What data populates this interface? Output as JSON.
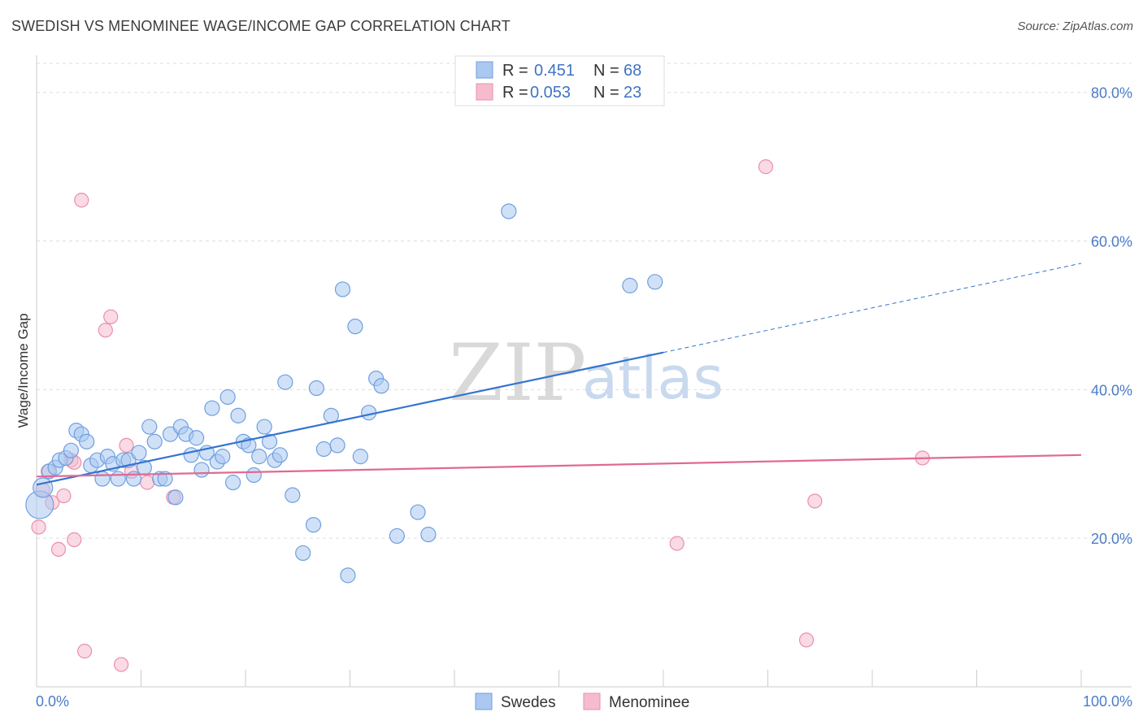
{
  "header": {
    "title": "SWEDISH VS MENOMINEE WAGE/INCOME GAP CORRELATION CHART",
    "source": "Source: ZipAtlas.com"
  },
  "watermark": {
    "zip": "ZIP",
    "atlas": "atlas"
  },
  "colors": {
    "blue_fill": "#aac8f0",
    "blue_stroke": "#6f9fe0",
    "blue_line": "#3474d0",
    "pink_fill": "#f6bccd",
    "pink_stroke": "#ea8fab",
    "pink_line": "#e06a93",
    "grid": "#dddddd",
    "axis_label": "#4a7cc9"
  },
  "legend": {
    "rows": [
      {
        "r_label": "R =",
        "r_value": "0.451",
        "n_label": "N =",
        "n_value": "68"
      },
      {
        "r_label": "R =",
        "r_value": "0.053",
        "n_label": "N =",
        "n_value": "23"
      }
    ]
  },
  "chart_data": {
    "type": "scatter",
    "title": "SWEDISH VS MENOMINEE WAGE/INCOME GAP CORRELATION CHART",
    "xlabel": "",
    "ylabel": "Wage/Income Gap",
    "xlim": [
      0,
      100
    ],
    "ylim": [
      0,
      85
    ],
    "x_tick_labels": [
      "0.0%",
      "100.0%"
    ],
    "y_ticks": [
      20,
      40,
      60,
      80
    ],
    "y_tick_labels": [
      "20.0%",
      "40.0%",
      "60.0%",
      "80.0%"
    ],
    "grid": true,
    "legend_position": "top-center",
    "series": [
      {
        "name": "Swedes",
        "r": 0.451,
        "n": 68,
        "trend": {
          "x0": 0,
          "y0": 27.2,
          "x1": 60,
          "y1": 45.0,
          "dash_to_x": 100,
          "dash_to_y": 57.0
        },
        "points": [
          [
            0.3,
            24.5
          ],
          [
            0.6,
            26.8
          ],
          [
            1.2,
            29.0
          ],
          [
            1.8,
            29.5
          ],
          [
            2.2,
            30.5
          ],
          [
            2.8,
            30.8
          ],
          [
            3.3,
            31.8
          ],
          [
            3.8,
            34.5
          ],
          [
            4.3,
            34.0
          ],
          [
            4.8,
            33.0
          ],
          [
            5.2,
            29.8
          ],
          [
            5.8,
            30.5
          ],
          [
            6.3,
            28.0
          ],
          [
            6.8,
            31.0
          ],
          [
            7.3,
            30.0
          ],
          [
            7.8,
            28.0
          ],
          [
            8.3,
            30.5
          ],
          [
            8.8,
            30.5
          ],
          [
            9.3,
            28.0
          ],
          [
            9.8,
            31.5
          ],
          [
            10.3,
            29.5
          ],
          [
            10.8,
            35.0
          ],
          [
            11.3,
            33.0
          ],
          [
            11.8,
            28.0
          ],
          [
            12.3,
            28.0
          ],
          [
            12.8,
            34.0
          ],
          [
            13.3,
            25.5
          ],
          [
            13.8,
            35.0
          ],
          [
            14.3,
            34.0
          ],
          [
            14.8,
            31.2
          ],
          [
            15.3,
            33.5
          ],
          [
            15.8,
            29.2
          ],
          [
            16.3,
            31.5
          ],
          [
            16.8,
            37.5
          ],
          [
            17.3,
            30.3
          ],
          [
            17.8,
            31.0
          ],
          [
            18.3,
            39.0
          ],
          [
            18.8,
            27.5
          ],
          [
            19.3,
            36.5
          ],
          [
            19.8,
            33.0
          ],
          [
            20.3,
            32.5
          ],
          [
            20.8,
            28.5
          ],
          [
            21.3,
            31.0
          ],
          [
            21.8,
            35.0
          ],
          [
            22.3,
            33.0
          ],
          [
            22.8,
            30.5
          ],
          [
            23.3,
            31.2
          ],
          [
            23.8,
            41.0
          ],
          [
            24.5,
            25.8
          ],
          [
            25.5,
            18.0
          ],
          [
            26.5,
            21.8
          ],
          [
            26.8,
            40.2
          ],
          [
            27.5,
            32.0
          ],
          [
            28.2,
            36.5
          ],
          [
            28.8,
            32.5
          ],
          [
            29.3,
            53.5
          ],
          [
            29.8,
            15.0
          ],
          [
            30.5,
            48.5
          ],
          [
            31.0,
            31.0
          ],
          [
            31.8,
            36.9
          ],
          [
            32.5,
            41.5
          ],
          [
            33.0,
            40.5
          ],
          [
            34.5,
            20.3
          ],
          [
            36.5,
            23.5
          ],
          [
            37.5,
            20.5
          ],
          [
            45.2,
            64.0
          ],
          [
            56.8,
            54.0
          ],
          [
            59.2,
            54.5
          ]
        ]
      },
      {
        "name": "Menominee",
        "r": 0.053,
        "n": 23,
        "trend": {
          "x0": 0,
          "y0": 28.3,
          "x1": 100,
          "y1": 31.2
        },
        "points": [
          [
            0.2,
            21.5
          ],
          [
            0.6,
            26.5
          ],
          [
            1.1,
            29.0
          ],
          [
            1.5,
            24.8
          ],
          [
            2.1,
            18.5
          ],
          [
            2.6,
            25.7
          ],
          [
            3.3,
            30.5
          ],
          [
            3.6,
            30.2
          ],
          [
            3.6,
            19.8
          ],
          [
            4.3,
            65.5
          ],
          [
            4.6,
            4.8
          ],
          [
            6.6,
            48.0
          ],
          [
            7.1,
            49.8
          ],
          [
            8.1,
            3.0
          ],
          [
            8.6,
            32.5
          ],
          [
            9.1,
            29.0
          ],
          [
            10.6,
            27.5
          ],
          [
            13.1,
            25.5
          ],
          [
            61.3,
            19.3
          ],
          [
            69.8,
            70.0
          ],
          [
            73.7,
            6.3
          ],
          [
            74.5,
            25.0
          ],
          [
            84.8,
            30.8
          ]
        ]
      }
    ]
  }
}
